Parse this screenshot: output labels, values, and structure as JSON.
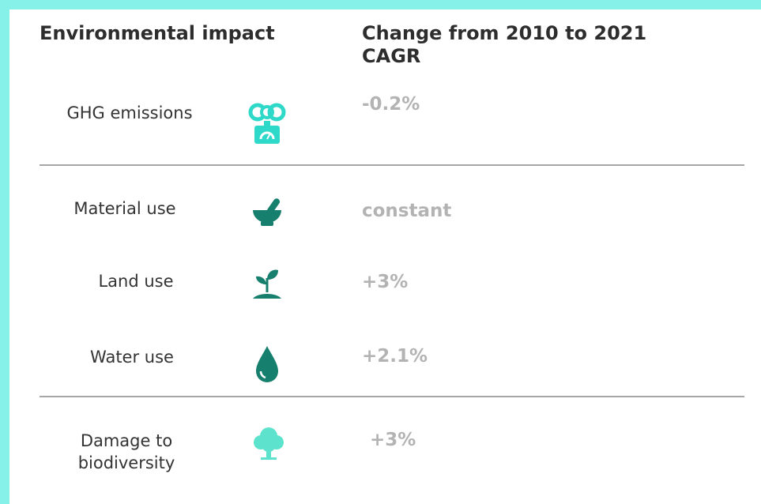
{
  "header": {
    "title": "Environmental impact",
    "subtitle": "Change from 2010 to 2021 CAGR"
  },
  "rows": [
    {
      "label": "GHG emissions",
      "value": "-0.2%"
    },
    {
      "label": "Material use",
      "value": "constant"
    },
    {
      "label": "Land use",
      "value": "+3%"
    },
    {
      "label": "Water use",
      "value": "+2.1%"
    },
    {
      "label": "Damage to biodiversity",
      "value": "+3%"
    }
  ]
}
